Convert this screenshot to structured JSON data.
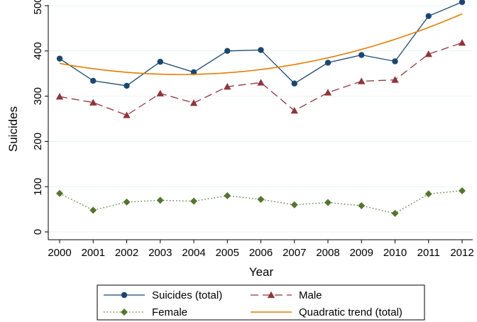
{
  "chart_data": {
    "type": "line",
    "x": [
      2000,
      2001,
      2002,
      2003,
      2004,
      2005,
      2006,
      2007,
      2008,
      2009,
      2010,
      2011,
      2012
    ],
    "xlabel": "Year",
    "ylabel": "Suicides",
    "xlim": [
      2000,
      2012
    ],
    "ylim": [
      0,
      500
    ],
    "yticks": [
      0,
      100,
      200,
      300,
      400,
      500
    ],
    "grid": "horizontal",
    "legend_position": "bottom",
    "series": [
      {
        "name": "Suicides (total)",
        "color": "#1a476f",
        "line_style": "solid",
        "marker": "circle",
        "values": [
          383,
          334,
          323,
          376,
          353,
          400,
          402,
          328,
          374,
          391,
          377,
          477,
          508
        ]
      },
      {
        "name": "Male",
        "color": "#90353b",
        "line_style": "dashed",
        "marker": "triangle",
        "values": [
          299,
          286,
          258,
          306,
          285,
          321,
          330,
          268,
          308,
          333,
          336,
          393,
          418
        ]
      },
      {
        "name": "Female",
        "color": "#55752f",
        "line_style": "dotted",
        "marker": "diamond",
        "values": [
          85,
          48,
          66,
          70,
          68,
          80,
          72,
          60,
          65,
          58,
          41,
          84,
          91
        ]
      },
      {
        "name": "Quadratic trend (total)",
        "color": "#e37e00",
        "line_style": "solid",
        "marker": "none",
        "values": [
          373,
          360,
          352,
          349,
          349,
          352,
          359,
          370,
          385,
          403,
          425,
          451,
          483
        ]
      }
    ]
  }
}
